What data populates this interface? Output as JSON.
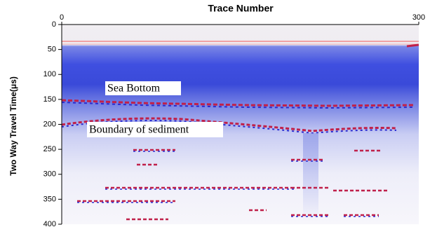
{
  "chart_data": {
    "type": "seismic",
    "title": "Trace Number",
    "y_label": "Two Way Travel Time(μs)",
    "xlim": [
      0,
      300
    ],
    "xticks": [
      0,
      300
    ],
    "ylim": [
      0,
      400
    ],
    "yticks": [
      0,
      50,
      100,
      150,
      200,
      250,
      300,
      350,
      400
    ],
    "y_inverted": true,
    "annotations": [
      "Sea Bottom",
      "Boundary of sediment"
    ]
  }
}
